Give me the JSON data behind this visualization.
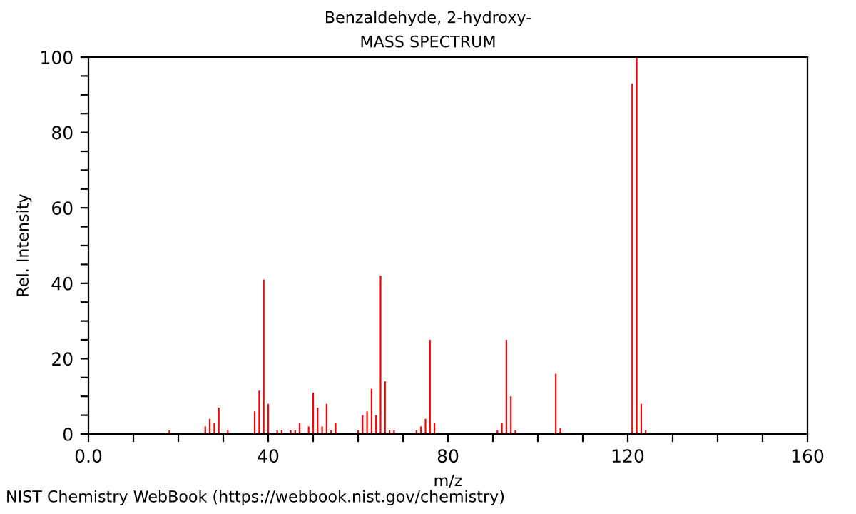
{
  "chart_data": {
    "type": "bar",
    "title": "Benzaldehyde, 2-hydroxy-",
    "subtitle": "MASS SPECTRUM",
    "xlabel": "m/z",
    "ylabel": "Rel. Intensity",
    "x": [
      18,
      26,
      27,
      28,
      29,
      31,
      37,
      38,
      39,
      40,
      42,
      43,
      45,
      46,
      47,
      49,
      50,
      51,
      52,
      53,
      54,
      55,
      60,
      61,
      62,
      63,
      64,
      65,
      66,
      67,
      68,
      73,
      74,
      75,
      76,
      77,
      91,
      92,
      93,
      94,
      95,
      104,
      105,
      121,
      122,
      123,
      124
    ],
    "values": [
      1,
      2,
      4,
      3,
      7,
      1,
      6,
      11.5,
      41,
      8,
      1,
      1,
      1,
      1,
      3,
      2,
      11,
      7,
      2,
      8,
      1,
      3,
      1,
      5,
      6,
      12,
      5,
      42,
      14,
      1,
      1,
      1,
      2,
      4,
      25,
      3,
      1,
      3,
      25,
      10,
      1,
      16,
      1.5,
      93,
      100,
      8,
      1
    ],
    "color": "#ff0000",
    "xlim": [
      0,
      160
    ],
    "xticks": [
      {
        "value": 0,
        "label": "0.0"
      },
      {
        "value": 10,
        "label": null
      },
      {
        "value": 20,
        "label": null
      },
      {
        "value": 30,
        "label": null
      },
      40,
      {
        "value": 50,
        "label": null
      },
      {
        "value": 60,
        "label": null
      },
      {
        "value": 70,
        "label": null
      },
      80,
      {
        "value": 90,
        "label": null
      },
      {
        "value": 100,
        "label": null
      },
      {
        "value": 110,
        "label": null
      },
      120,
      {
        "value": 130,
        "label": null
      },
      {
        "value": 140,
        "label": null
      },
      {
        "value": 150,
        "label": null
      },
      160
    ],
    "ylim": [
      0,
      100
    ],
    "yticks": [
      0,
      {
        "value": 5,
        "label": null
      },
      {
        "value": 10,
        "label": null
      },
      {
        "value": 15,
        "label": null
      },
      20,
      {
        "value": 25,
        "label": null
      },
      {
        "value": 30,
        "label": null
      },
      {
        "value": 35,
        "label": null
      },
      40,
      {
        "value": 45,
        "label": null
      },
      {
        "value": 50,
        "label": null
      },
      {
        "value": 55,
        "label": null
      },
      60,
      {
        "value": 65,
        "label": null
      },
      {
        "value": 70,
        "label": null
      },
      {
        "value": 75,
        "label": null
      },
      80,
      {
        "value": 85,
        "label": null
      },
      {
        "value": 90,
        "label": null
      },
      {
        "value": 95,
        "label": null
      },
      100
    ],
    "annotations": [
      "NIST Chemistry WebBook (https://webbook.nist.gov/chemistry)"
    ]
  }
}
